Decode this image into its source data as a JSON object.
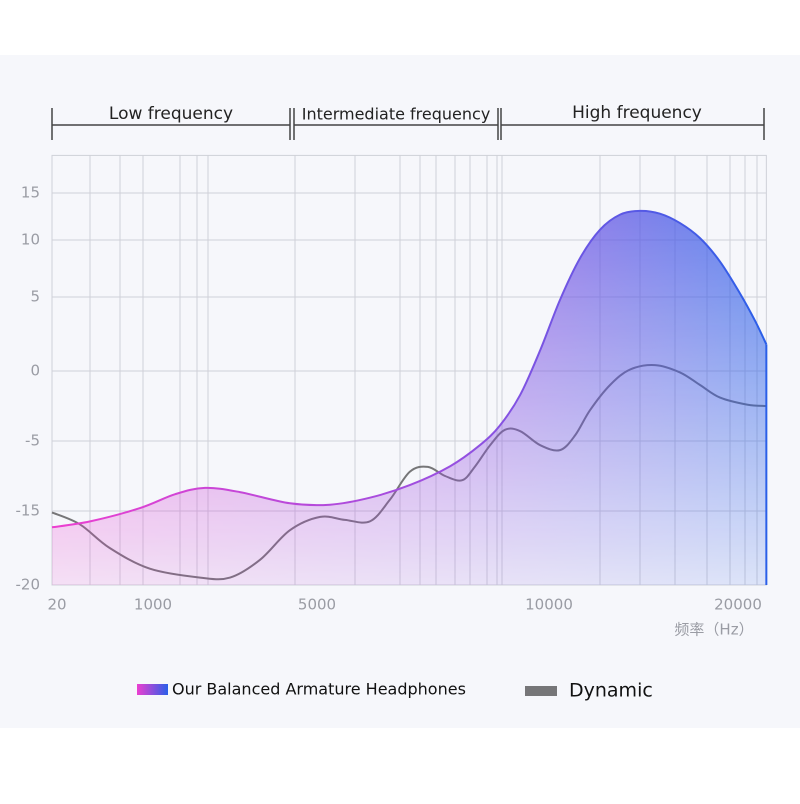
{
  "chart_data": {
    "type": "line",
    "bands": [
      "Low frequency",
      "Intermediate frequency",
      "High frequency"
    ],
    "x_label": "频率（Hz）",
    "xlim": [
      20,
      21500
    ],
    "xticks": [
      20,
      1000,
      5000,
      10000,
      20000
    ],
    "ylim": [
      -20,
      19
    ],
    "yticks": [
      15,
      10,
      5,
      0,
      -5,
      -15,
      -20
    ],
    "grid": true,
    "series": [
      {
        "name": "Our Balanced Armature Headphones",
        "color": [
          "#ec3fd0",
          "#2a5fe8"
        ],
        "fill": true,
        "x": [
          20,
          390,
          870,
          1540,
          2270,
          3120,
          4340,
          5280,
          6140,
          7000,
          7870,
          8510,
          8940,
          9380,
          9810,
          10580,
          11640,
          12700,
          13760,
          14810,
          15870,
          16930,
          17990,
          19050,
          20110,
          20900,
          21500
        ],
        "values": [
          -16.1,
          -15.7,
          -14.6,
          -12.6,
          -11.7,
          -12.3,
          -13.9,
          -14.1,
          -13.1,
          -11.3,
          -8.6,
          -5.6,
          -3.9,
          -1.7,
          1.4,
          4.8,
          8.4,
          11.1,
          12.7,
          13.1,
          12.8,
          11.8,
          10.2,
          8.1,
          5.3,
          3.4,
          1.8
        ]
      },
      {
        "name": "Dynamic",
        "color": [
          "#767678"
        ],
        "fill": false,
        "x": [
          20,
          290,
          580,
          970,
          2150,
          2880,
          3610,
          4340,
          5070,
          5600,
          6140,
          6570,
          7000,
          7390,
          7760,
          8130,
          8410,
          8730,
          9050,
          9380,
          9810,
          10580,
          11380,
          12170,
          13230,
          14290,
          15610,
          16930,
          17990,
          19050,
          20480,
          21480
        ],
        "values": [
          -15.1,
          -15.9,
          -17.5,
          -18.9,
          -19.5,
          -19.5,
          -18.3,
          -16.3,
          -15.4,
          -15.6,
          -15.7,
          -13.4,
          -9.4,
          -8.7,
          -10.0,
          -10.6,
          -8.6,
          -5.6,
          -4.2,
          -4.3,
          -5.6,
          -6.3,
          -4.6,
          -2.8,
          -1.0,
          0.1,
          0.4,
          -0.1,
          -1.0,
          -1.9,
          -2.4,
          -2.5
        ]
      }
    ]
  }
}
